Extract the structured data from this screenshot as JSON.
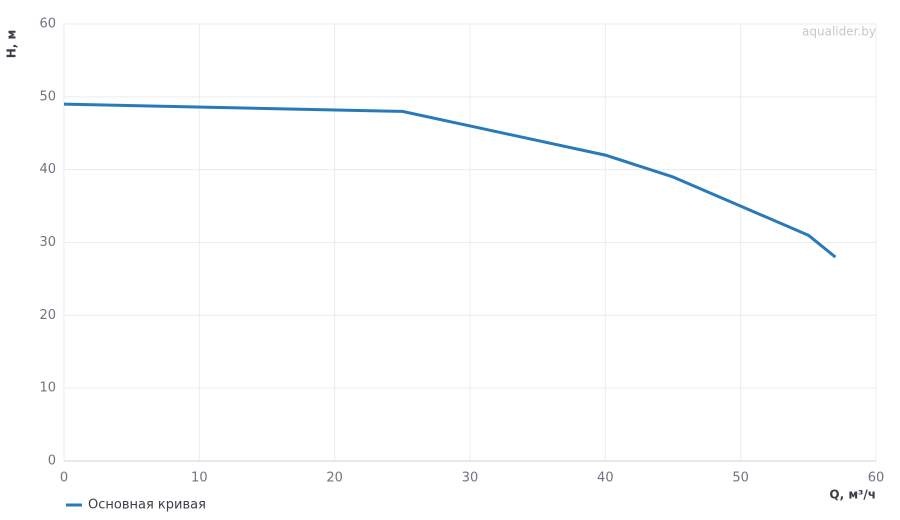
{
  "chart_data": {
    "type": "line",
    "watermark": "aqualider.by",
    "x_label": "Q, м³/ч",
    "y_label": "H, м",
    "x": [
      0,
      25,
      30,
      40,
      45,
      50,
      55,
      57
    ],
    "series": [
      {
        "name": "Основная кривая",
        "color": "#2a7ab8",
        "values": [
          49,
          48,
          46,
          42,
          39,
          35,
          31,
          28
        ]
      }
    ],
    "xlim": [
      0,
      60
    ],
    "xticks": [
      0,
      10,
      20,
      30,
      40,
      50,
      60
    ],
    "ylim": [
      0,
      60
    ],
    "yticks": [
      0,
      10,
      20,
      30,
      40,
      50,
      60
    ],
    "grid": true,
    "legend": "bottom-left"
  }
}
